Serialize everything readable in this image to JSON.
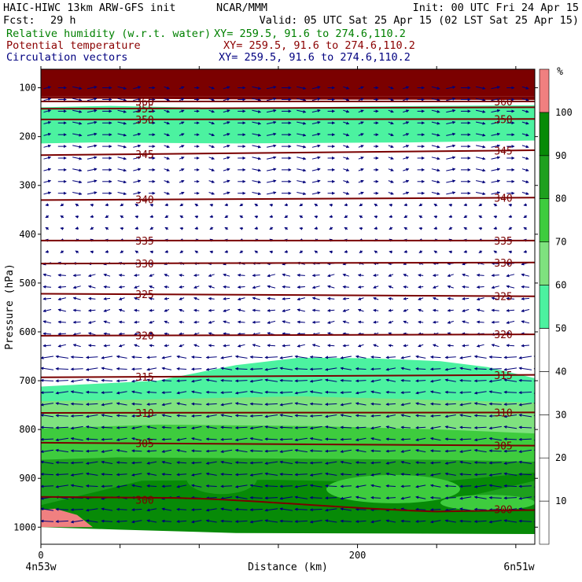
{
  "header": {
    "line1_left": "HAIC-HIWC 13km ARW-GFS init",
    "line1_mid": "NCAR/MMM",
    "line1_right": "Init: 00 UTC Fri 24 Apr 15",
    "fcst_label": "Fcst:",
    "fcst_value": "29 h",
    "valid": "Valid: 05 UTC Sat 25 Apr 15 (02 LST Sat 25 Apr 15)",
    "field1": "Relative humidity (w.r.t. water)",
    "field1_xy": "XY= 259.5, 91.6 to 274.6,110.2",
    "field2": "Potential temperature",
    "field2_xy": "XY= 259.5, 91.6 to 274.6,110.2",
    "field3": "Circulation vectors",
    "field3_xy": "XY= 259.5, 91.6 to 274.6,110.2"
  },
  "colors": {
    "field1": "#008000",
    "field2": "#8b0000",
    "field3": "#000080",
    "theta_line": "#7a0000",
    "vector": "#00007a",
    "rh_bins": [
      "#ffffff",
      "#ffffff",
      "#ffffff",
      "#ffffff",
      "#ffffff",
      "#4cf2a0",
      "#7fe27f",
      "#3ecc3e",
      "#1ea01e",
      "#078a07",
      "#f08080"
    ]
  },
  "chart_data": {
    "type": "heatmap",
    "title": "Relative humidity (w.r.t. water), Potential temperature, Circulation vectors",
    "xlabel": "Distance (km)",
    "ylabel": "Pressure (hPa)",
    "x_ticks": [
      0,
      200
    ],
    "x_tick_labels": [
      "0",
      "200"
    ],
    "xlim": [
      0,
      312
    ],
    "x_end_labels": [
      "4n53w",
      "6n51w"
    ],
    "y_ticks": [
      100,
      200,
      300,
      400,
      500,
      600,
      700,
      800,
      900,
      1000
    ],
    "ylim": [
      1035,
      62
    ],
    "colorbar": {
      "unit": "%",
      "labels": [
        "10",
        "20",
        "30",
        "40",
        "50",
        "60",
        "70",
        "80",
        "90",
        "100"
      ],
      "bins": [
        0,
        10,
        20,
        30,
        40,
        50,
        60,
        70,
        80,
        90,
        100,
        110
      ]
    },
    "rh_regions": [
      {
        "rh": ">100",
        "desc": "stratospheric top layer",
        "p": [
          62,
          100
        ]
      },
      {
        "rh": "50-60",
        "desc": "upper moist layer",
        "p": [
          135,
          215
        ]
      },
      {
        "rh": "50-60",
        "desc": "mid-level moist layer top",
        "p": [
          655,
          730
        ]
      },
      {
        "rh": "60-70",
        "p": [
          740,
          800
        ]
      },
      {
        "rh": "70-80",
        "p": [
          800,
          860
        ]
      },
      {
        "rh": "80-90",
        "p": [
          860,
          950
        ]
      },
      {
        "rh": "90-100",
        "p": [
          880,
          960
        ]
      },
      {
        "rh": ">100",
        "desc": "surface patch near x=0",
        "p": [
          965,
          1000
        ]
      }
    ],
    "theta_contours": [
      {
        "label": "300",
        "p_left": 938,
        "p_right": 965
      },
      {
        "label": "305",
        "p_left": 827,
        "p_right": 833
      },
      {
        "label": "310",
        "p_left": 766,
        "p_right": 765
      },
      {
        "label": "315",
        "p_left": 693,
        "p_right": 688
      },
      {
        "label": "320",
        "p_left": 608,
        "p_right": 605
      },
      {
        "label": "325",
        "p_left": 522,
        "p_right": 527
      },
      {
        "label": "330",
        "p_left": 460,
        "p_right": 458
      },
      {
        "label": "335",
        "p_left": 413,
        "p_right": 413
      },
      {
        "label": "340",
        "p_left": 330,
        "p_right": 325
      },
      {
        "label": "345",
        "p_left": 238,
        "p_right": 228
      },
      {
        "label": "350",
        "p_left": 165,
        "p_right": 164
      },
      {
        "label": "355",
        "p_left": 143,
        "p_right": 140
      },
      {
        "label": "360",
        "p_left": 128,
        "p_right": 128
      }
    ]
  }
}
